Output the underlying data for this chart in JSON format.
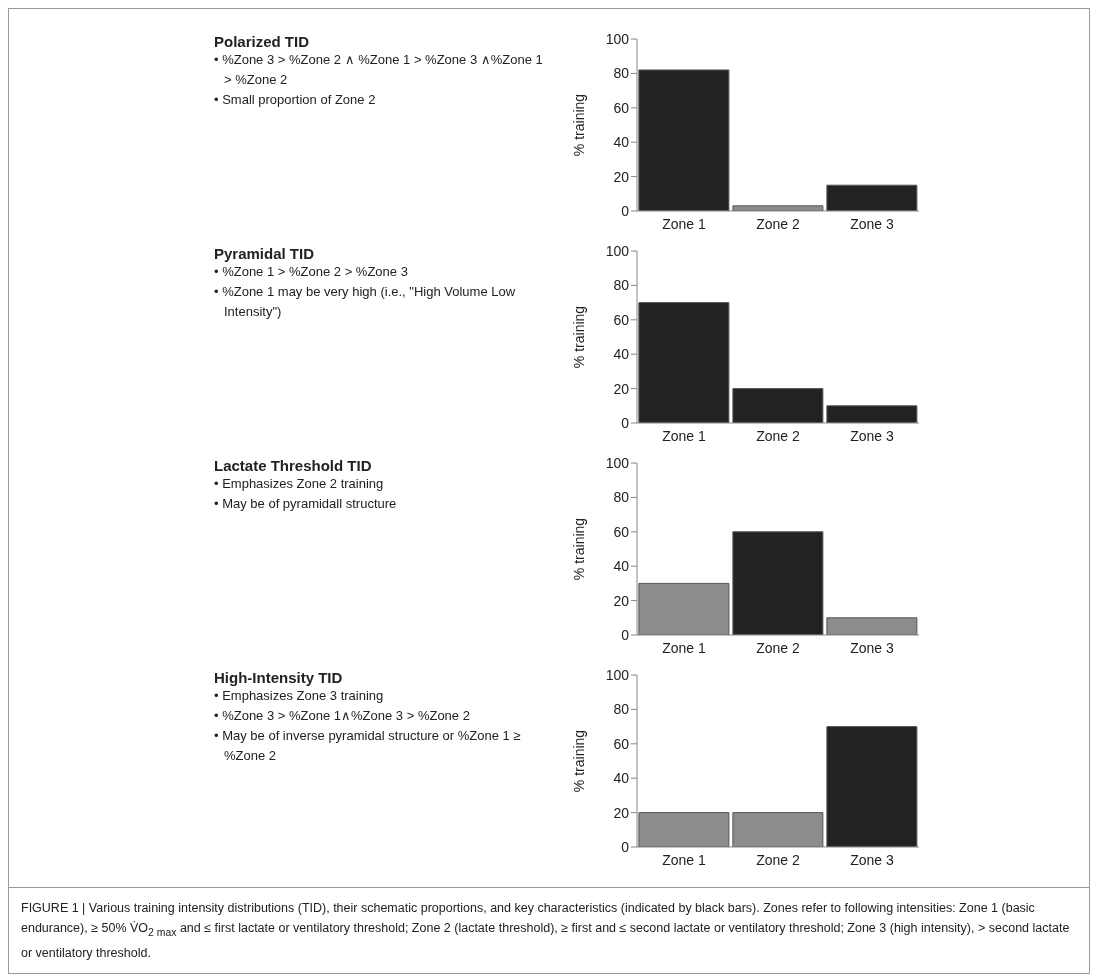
{
  "chart_data": [
    {
      "type": "bar",
      "annotations": [
        "Polarized TID",
        "• %Zone 3 > %Zone 2 ∧ %Zone 1 > %Zone 3 ∧%Zone 1 > %Zone 2",
        "• Small proportion of Zone 2"
      ],
      "categories": [
        "Zone 1",
        "Zone 2",
        "Zone 3"
      ],
      "values": [
        82,
        3,
        15
      ],
      "colors": [
        "#222222",
        "#8c8c8c",
        "#222222"
      ],
      "ylabel": "% training",
      "ylim": [
        0,
        100
      ],
      "yticks": [
        0,
        20,
        40,
        60,
        80,
        100
      ]
    },
    {
      "type": "bar",
      "annotations": [
        "Pyramidal TID",
        "• %Zone 1 > %Zone 2 > %Zone 3",
        "• %Zone 1 may be very high (i.e., \"High Volume Low Intensity\")"
      ],
      "categories": [
        "Zone 1",
        "Zone 2",
        "Zone 3"
      ],
      "values": [
        70,
        20,
        10
      ],
      "colors": [
        "#222222",
        "#222222",
        "#222222"
      ],
      "ylabel": "% training",
      "ylim": [
        0,
        100
      ],
      "yticks": [
        0,
        20,
        40,
        60,
        80,
        100
      ]
    },
    {
      "type": "bar",
      "annotations": [
        "Lactate Threshold TID",
        "• Emphasizes Zone 2 training",
        "• May be of pyramidall structure"
      ],
      "categories": [
        "Zone 1",
        "Zone 2",
        "Zone 3"
      ],
      "values": [
        30,
        60,
        10
      ],
      "colors": [
        "#8c8c8c",
        "#222222",
        "#8c8c8c"
      ],
      "ylabel": "% training",
      "ylim": [
        0,
        100
      ],
      "yticks": [
        0,
        20,
        40,
        60,
        80,
        100
      ]
    },
    {
      "type": "bar",
      "annotations": [
        "High-Intensity TID",
        "• Emphasizes Zone 3 training",
        "• %Zone 3 > %Zone 1∧%Zone 3 > %Zone 2",
        "• May be of inverse pyramidal structure or %Zone 1 ≥ %Zone 2",
        "FIGURE 1 | Various training intensity distributions (TID), their schematic proportions, and key characteristics (indicated by black bars). Zones refer to following intensities: Zone 1 (basic endurance), ≥ 50% V̇O$_{2 max}$ and ≤ first lactate or ventilatory threshold; Zone 2 (lactate threshold), ≥ first and ≤ second lactate or ventilatory threshold; Zone 3 (high intensity), > second lactate or ventilatory threshold."
      ],
      "categories": [
        "Zone 1",
        "Zone 2",
        "Zone 3"
      ],
      "values": [
        20,
        20,
        70
      ],
      "colors": [
        "#8c8c8c",
        "#8c8c8c",
        "#222222"
      ],
      "ylabel": "% training",
      "ylim": [
        0,
        100
      ],
      "yticks": [
        0,
        20,
        40,
        60,
        80,
        100
      ]
    }
  ]
}
